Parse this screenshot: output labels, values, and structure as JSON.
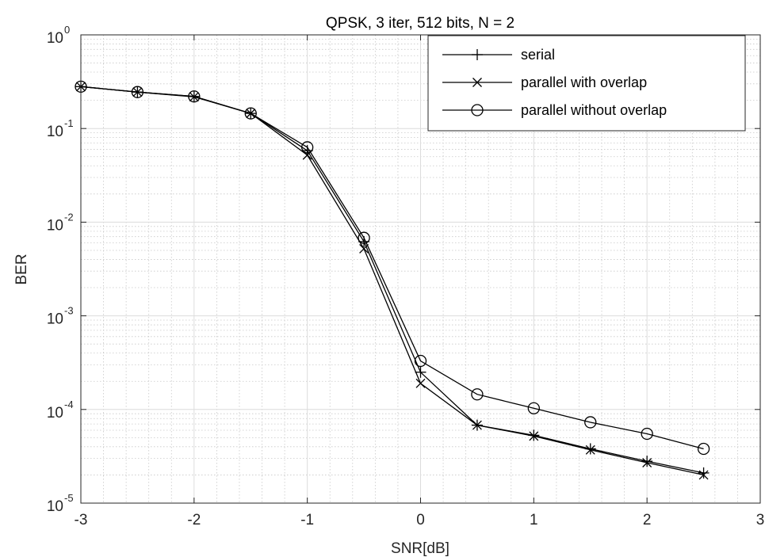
{
  "chart_data": {
    "type": "line",
    "title": "QPSK, 3 iter, 512 bits, N = 2",
    "xlabel": "SNR[dB]",
    "ylabel": "BER",
    "xlim": [
      -3,
      3
    ],
    "ylim": [
      1e-05,
      1
    ],
    "yscale": "log",
    "grid": true,
    "minor_grid": true,
    "legend_position": "top-right",
    "xticks": [
      -3,
      -2,
      -1,
      0,
      1,
      2,
      3
    ],
    "xtick_labels": [
      "-3",
      "-2",
      "-1",
      "0",
      "1",
      "2",
      "3"
    ],
    "yticks": [
      {
        "base": "10",
        "exp": "-5",
        "value": 1e-05
      },
      {
        "base": "10",
        "exp": "-4",
        "value": 0.0001
      },
      {
        "base": "10",
        "exp": "-3",
        "value": 0.001
      },
      {
        "base": "10",
        "exp": "-2",
        "value": 0.01
      },
      {
        "base": "10",
        "exp": "-1",
        "value": 0.1
      },
      {
        "base": "10",
        "exp": "0",
        "value": 1
      }
    ],
    "x": [
      -3,
      -2.5,
      -2,
      -1.5,
      -1,
      -0.5,
      0,
      0.5,
      1,
      1.5,
      2,
      2.5
    ],
    "series": [
      {
        "name": "serial",
        "marker": "plus",
        "color": "#000000",
        "values": [
          0.28,
          0.245,
          0.22,
          0.145,
          0.058,
          0.0062,
          0.00025,
          6.8e-05,
          5.3e-05,
          3.8e-05,
          2.8e-05,
          2.1e-05
        ]
      },
      {
        "name": "parallel with overlap",
        "marker": "x",
        "color": "#000000",
        "values": [
          0.28,
          0.245,
          0.218,
          0.145,
          0.052,
          0.0052,
          0.00019,
          6.8e-05,
          5.2e-05,
          3.7e-05,
          2.7e-05,
          2e-05
        ]
      },
      {
        "name": "parallel without overlap",
        "marker": "circle",
        "color": "#000000",
        "values": [
          0.28,
          0.245,
          0.22,
          0.145,
          0.063,
          0.0068,
          0.00033,
          0.000145,
          0.000103,
          7.3e-05,
          5.5e-05,
          3.8e-05
        ]
      }
    ]
  }
}
